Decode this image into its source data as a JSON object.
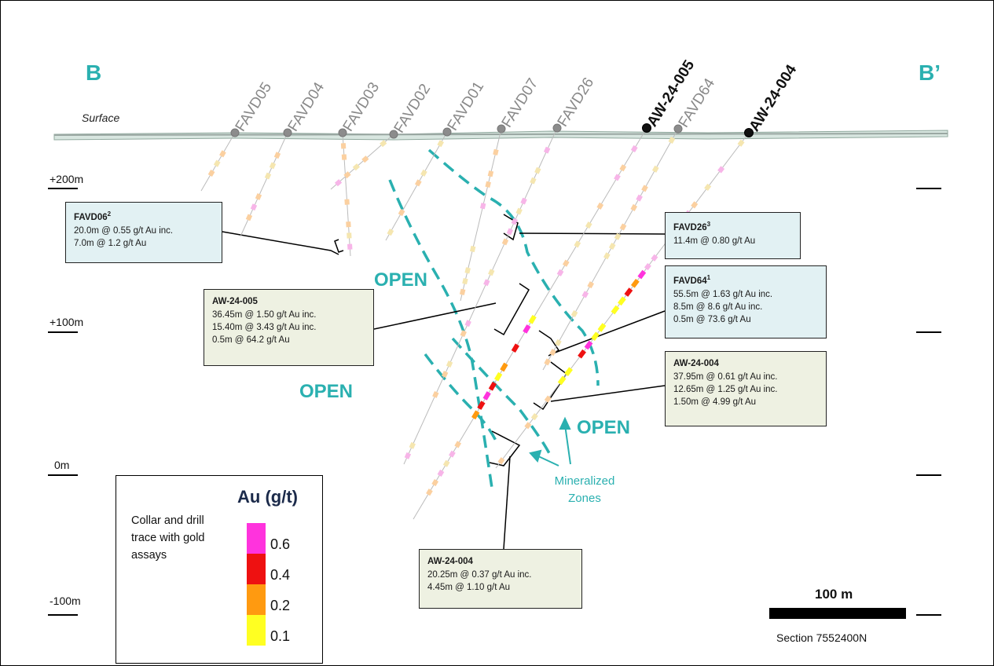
{
  "section_labels": {
    "left": "B",
    "right": "B’"
  },
  "surface_label": "Surface",
  "collars": [
    {
      "name": "FAVD05",
      "highlight": false
    },
    {
      "name": "FAVD04",
      "highlight": false
    },
    {
      "name": "FAVD03",
      "highlight": false
    },
    {
      "name": "FAVD02",
      "highlight": false
    },
    {
      "name": "FAVD01",
      "highlight": false
    },
    {
      "name": "FAVD07",
      "highlight": false
    },
    {
      "name": "FAVD26",
      "highlight": false
    },
    {
      "name": "AW-24-005",
      "highlight": true
    },
    {
      "name": "FAVD64",
      "highlight": false
    },
    {
      "name": "AW-24-004",
      "highlight": true
    }
  ],
  "elevations": [
    "+200m",
    "+100m",
    "0m",
    "-100m"
  ],
  "open_labels": [
    "OPEN",
    "OPEN",
    "OPEN"
  ],
  "mineralized_label": [
    "Mineralized",
    "Zones"
  ],
  "callouts": {
    "favd06": {
      "title": "FAVD06",
      "sup": "2",
      "lines": [
        "20.0m @ 0.55 g/t Au inc.",
        "7.0m @ 1.2 g/t Au"
      ]
    },
    "favd26": {
      "title": "FAVD26",
      "sup": "3",
      "lines": [
        "11.4m @ 0.80 g/t Au"
      ]
    },
    "aw005": {
      "title": "AW-24-005",
      "sup": "",
      "lines": [
        "36.45m @ 1.50 g/t Au inc.",
        "15.40m @ 3.43 g/t Au inc.",
        "0.5m @ 64.2 g/t Au"
      ]
    },
    "favd64": {
      "title": "FAVD64",
      "sup": "1",
      "lines": [
        "55.5m @ 1.63 g/t Au inc.",
        "8.5m @ 8.6 g/t Au inc.",
        "0.5m @ 73.6 g/t Au"
      ]
    },
    "aw004a": {
      "title": "AW-24-004",
      "sup": "",
      "lines": [
        "37.95m @ 0.61 g/t Au inc.",
        "12.65m @ 1.25 g/t Au inc.",
        "1.50m @ 4.99 g/t Au"
      ]
    },
    "aw004b": {
      "title": "AW-24-004",
      "sup": "",
      "lines": [
        "20.25m @ 0.37 g/t Au inc.",
        "4.45m @ 1.10 g/t Au"
      ]
    }
  },
  "legend": {
    "title": "Au (g/t)",
    "description": [
      "Collar and drill",
      "trace with gold",
      "assays"
    ],
    "scale": [
      {
        "label": "0.6",
        "color": "#ff33dd"
      },
      {
        "label": "0.4",
        "color": "#ee1111"
      },
      {
        "label": "0.2",
        "color": "#ff9a10"
      },
      {
        "label": "0.1",
        "color": "#ffff22"
      }
    ]
  },
  "scale_bar": {
    "label": "100 m"
  },
  "section_name": "Section 7552400N",
  "colors": {
    "teal": "#2ab0b0",
    "collar_grey": "#8c8c8c",
    "collar_black": "#111111",
    "box_blue": "#e2f1f3",
    "box_green": "#eef1e2"
  }
}
